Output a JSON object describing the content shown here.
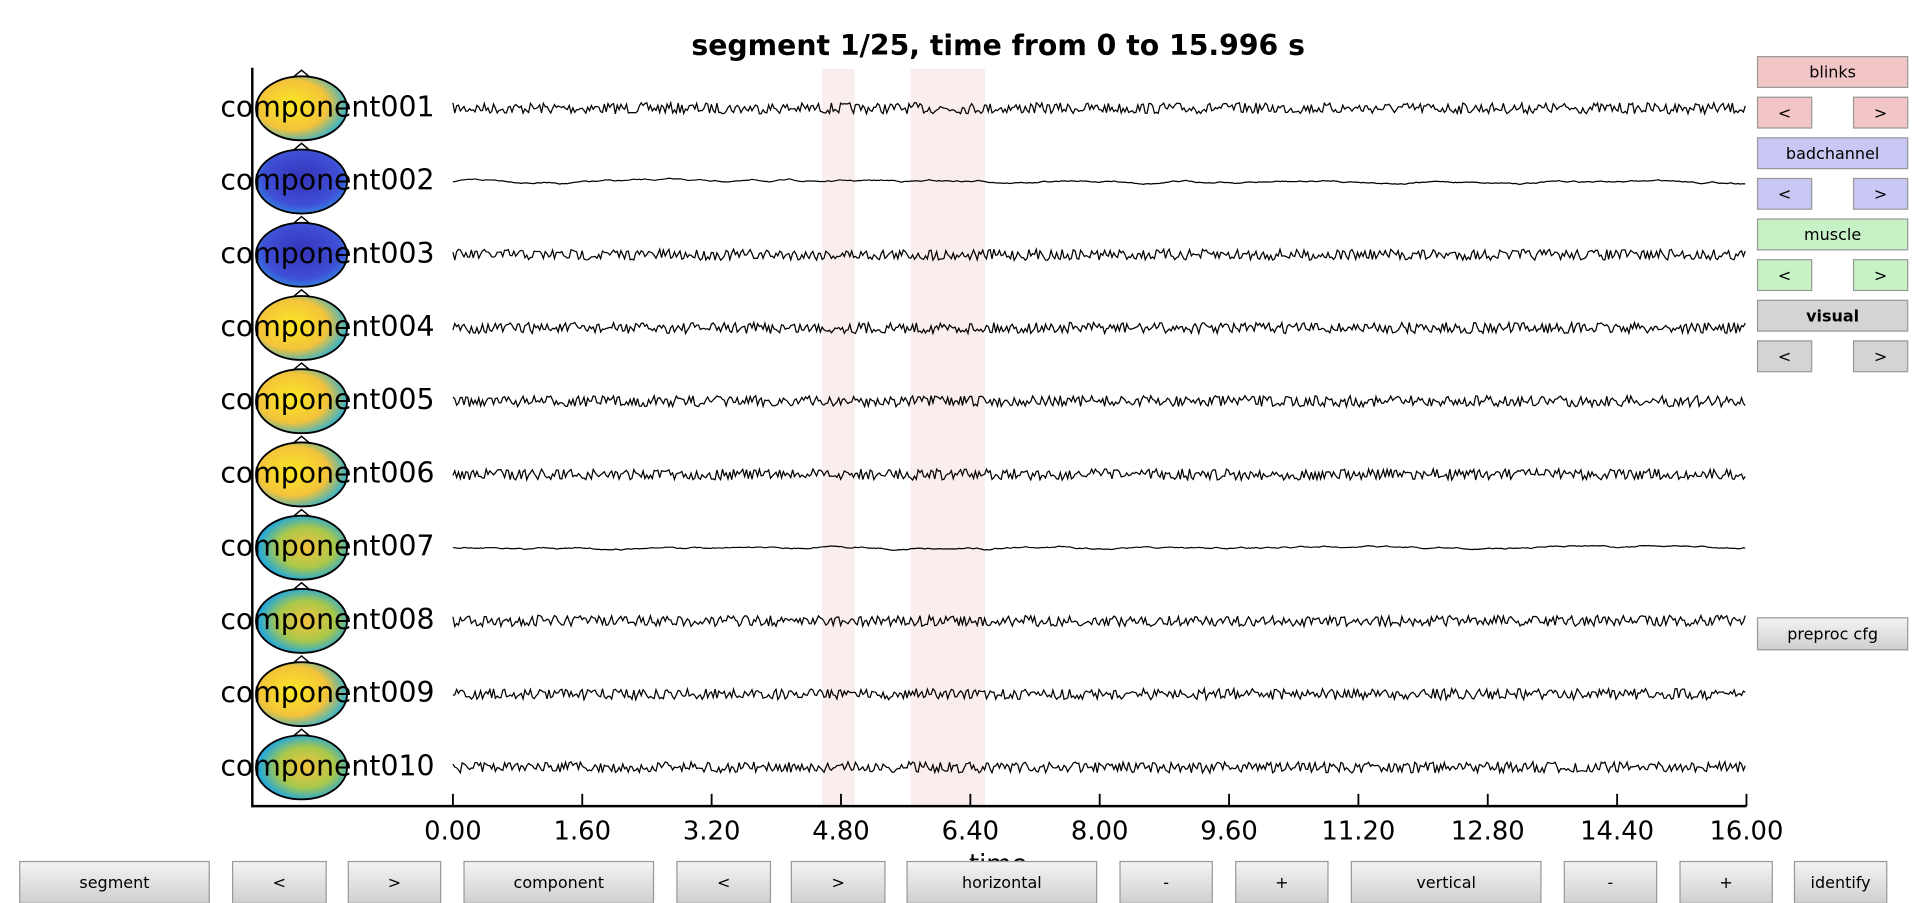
{
  "title": "segment 1/25, time from 0 to 15.996 s",
  "channels": [
    "component001",
    "component002",
    "component003",
    "component004",
    "component005",
    "component006",
    "component007",
    "component008",
    "component009",
    "component010"
  ],
  "x_axis": {
    "xlim": [
      0,
      16
    ],
    "xticks": [
      {
        "value": 0,
        "label": "0.00"
      },
      {
        "value": 1.6,
        "label": "1.60"
      },
      {
        "value": 3.2,
        "label": "3.20"
      },
      {
        "value": 4.8,
        "label": "4.80"
      },
      {
        "value": 6.4,
        "label": "6.40"
      },
      {
        "value": 8,
        "label": "8.00"
      },
      {
        "value": 9.6,
        "label": "9.60"
      },
      {
        "value": 11.2,
        "label": "11.20"
      },
      {
        "value": 12.8,
        "label": "12.80"
      },
      {
        "value": 14.4,
        "label": "14.40"
      },
      {
        "value": 16,
        "label": "16.00"
      }
    ],
    "xlabel": "time"
  },
  "artifact_regions": [
    [
      4.57,
      4.97
    ],
    [
      5.66,
      6.58
    ]
  ],
  "artifact_buttons": [
    {
      "label": "blinks",
      "prev": "<",
      "next": ">"
    },
    {
      "label": "badchannel",
      "prev": "<",
      "next": ">"
    },
    {
      "label": "muscle",
      "prev": "<",
      "next": ">"
    },
    {
      "label": "visual",
      "prev": "<",
      "next": ">"
    }
  ],
  "preproc_button": "preproc cfg",
  "bottom_buttons": [
    "segment",
    "<",
    ">",
    "component",
    "<",
    ">",
    "horizontal",
    "-",
    "+",
    "vertical",
    "-",
    "+",
    "identify"
  ]
}
